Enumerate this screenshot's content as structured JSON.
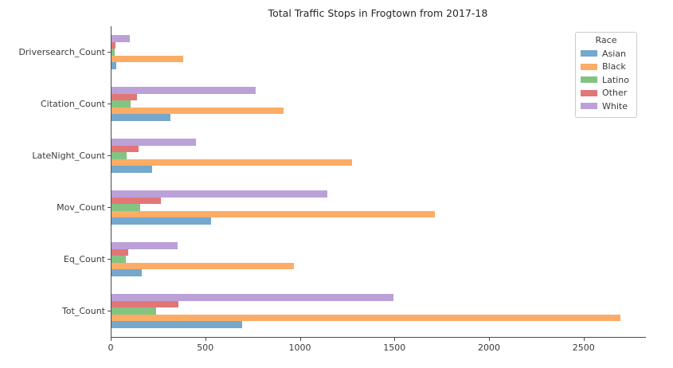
{
  "chart_data": {
    "type": "bar",
    "orientation": "horizontal",
    "title": "Total Traffic Stops in Frogtown from 2017-18",
    "categories": [
      "Driversearch_Count",
      "Citation_Count",
      "LateNight_Count",
      "Mov_Count",
      "Eq_Count",
      "Tot_Count"
    ],
    "series": [
      {
        "name": "Asian",
        "color": "#76a7cc",
        "values": [
          25,
          310,
          215,
          525,
          160,
          690
        ]
      },
      {
        "name": "Black",
        "color": "#fdac66",
        "values": [
          380,
          910,
          1270,
          1710,
          965,
          2690
        ]
      },
      {
        "name": "Latino",
        "color": "#83c482",
        "values": [
          18,
          100,
          80,
          150,
          75,
          235
        ]
      },
      {
        "name": "Other",
        "color": "#e27677",
        "values": [
          20,
          135,
          145,
          260,
          90,
          355
        ]
      },
      {
        "name": "White",
        "color": "#bba1d8",
        "values": [
          95,
          760,
          445,
          1140,
          350,
          1490
        ]
      }
    ],
    "bar_order_top_to_bottom": [
      "White",
      "Other",
      "Latino",
      "Black",
      "Asian"
    ],
    "legend": {
      "title": "Race",
      "position": "upper right"
    },
    "x_ticks": [
      0,
      500,
      1000,
      1500,
      2000,
      2500
    ],
    "xlim": [
      0,
      2825
    ],
    "xlabel": "",
    "ylabel": "",
    "grid": false,
    "accent_colors": {
      "axis": "#4a4a4a",
      "text": "#3a3a3a",
      "legend_border": "#cccccc"
    }
  }
}
